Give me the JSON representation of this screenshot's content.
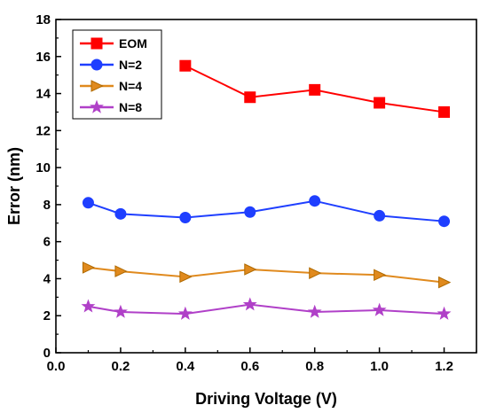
{
  "chart_data": {
    "type": "line",
    "xlabel": "Driving Voltage (V)",
    "ylabel": "Error (nm)",
    "xlim": [
      0.0,
      1.3
    ],
    "ylim": [
      0,
      18
    ],
    "xticks": [
      "0.0",
      "0.2",
      "0.4",
      "0.6",
      "0.8",
      "1.0",
      "1.2"
    ],
    "yticks": [
      "0",
      "2",
      "4",
      "6",
      "8",
      "10",
      "12",
      "14",
      "16",
      "18"
    ],
    "grid": false,
    "legend_position": "top-left",
    "series": [
      {
        "name": "EOM",
        "color": "#ff0000",
        "marker": "square",
        "x": [
          0.4,
          0.6,
          0.8,
          1.0,
          1.2
        ],
        "y": [
          15.5,
          13.8,
          14.2,
          13.5,
          13.0
        ]
      },
      {
        "name": "N=2",
        "color": "#1f3fff",
        "marker": "circle",
        "x": [
          0.1,
          0.2,
          0.4,
          0.6,
          0.8,
          1.0,
          1.2
        ],
        "y": [
          8.1,
          7.5,
          7.3,
          7.6,
          8.2,
          7.4,
          7.1
        ]
      },
      {
        "name": "N=4",
        "color": "#e08a1e",
        "edge_color": "#b06a00",
        "marker": "triangle-right",
        "x": [
          0.1,
          0.2,
          0.4,
          0.6,
          0.8,
          1.0,
          1.2
        ],
        "y": [
          4.6,
          4.4,
          4.1,
          4.5,
          4.3,
          4.2,
          3.8
        ]
      },
      {
        "name": "N=8",
        "color": "#b040c8",
        "marker": "star",
        "x": [
          0.1,
          0.2,
          0.4,
          0.6,
          0.8,
          1.0,
          1.2
        ],
        "y": [
          2.5,
          2.2,
          2.1,
          2.6,
          2.2,
          2.3,
          2.1
        ]
      }
    ]
  }
}
